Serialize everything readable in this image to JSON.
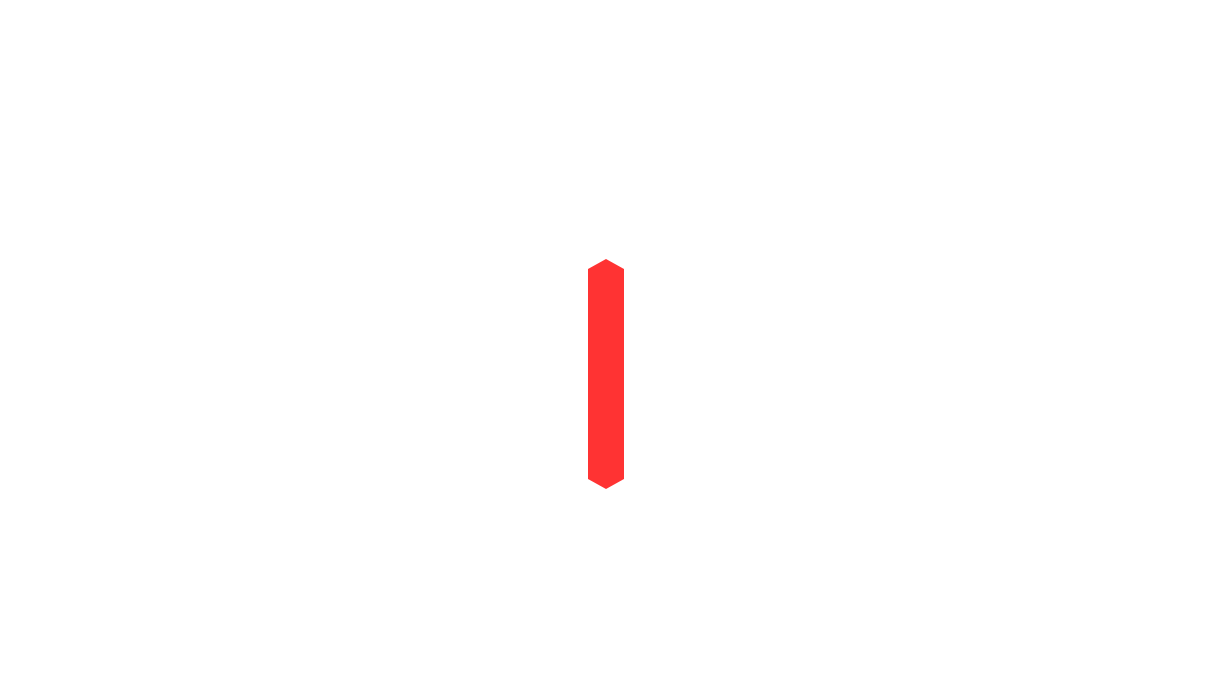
{
  "shape": {
    "name": "vertical-segment",
    "fill_color": "#FF3333"
  },
  "background_color": "#FFFFFF"
}
